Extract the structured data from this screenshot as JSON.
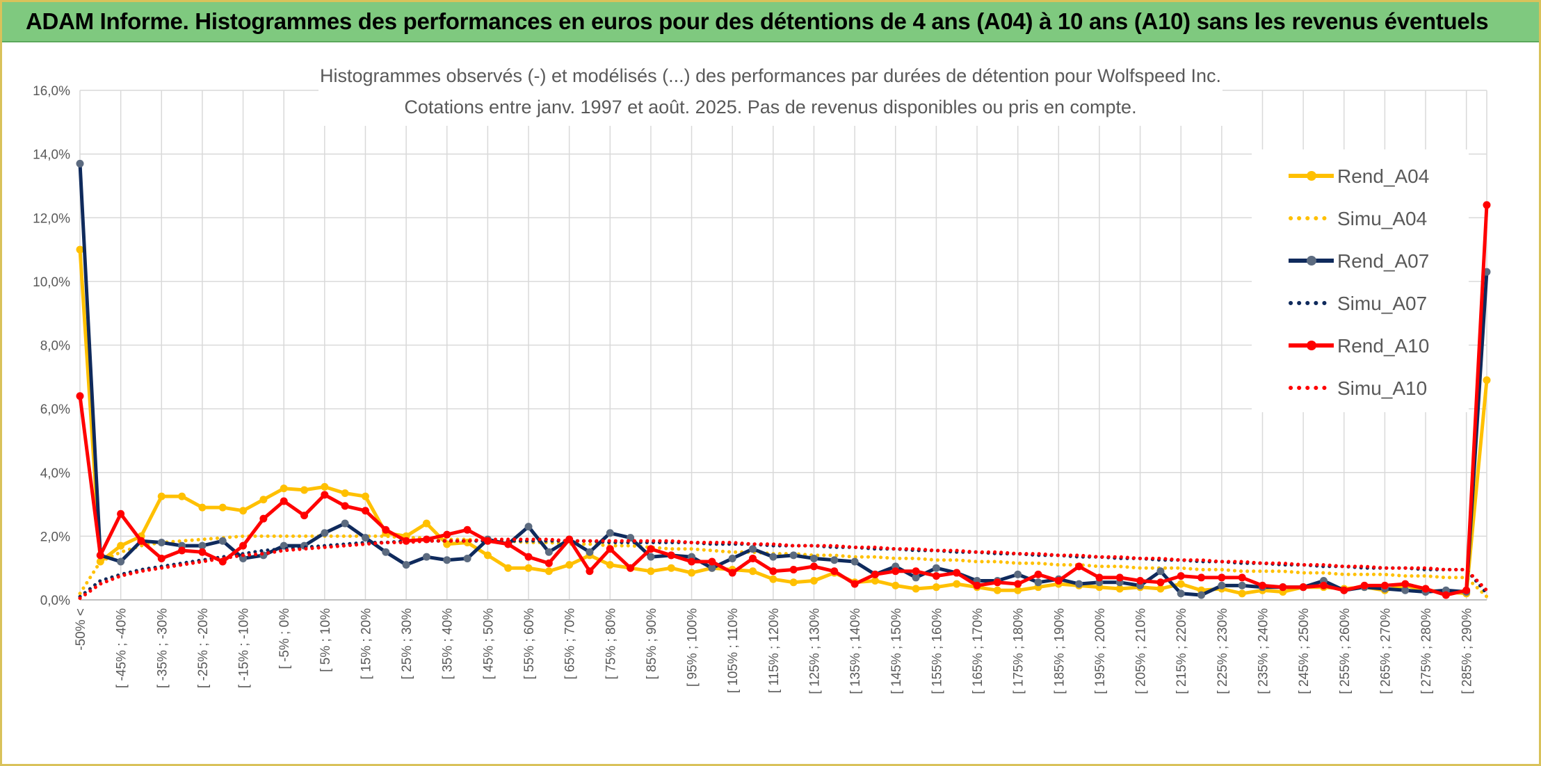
{
  "header": {
    "title": "ADAM Informe. Histogrammes des performances en euros pour des détentions de 4 ans (A04) à 10 ans (A10) sans les revenus éventuels"
  },
  "colors": {
    "banner": "#7fc97f",
    "A04": "#ffc000",
    "A07": "#0f2a5c",
    "A07_marker": "#5c6b80",
    "A10": "#ff0000",
    "grid": "#d9d9d9",
    "text": "#595959"
  },
  "chart_data": {
    "type": "line",
    "title": "Histogrammes observés (-) et modélisés (...) des performances par durées de détention pour Wolfspeed Inc.",
    "subtitle": "Cotations entre janv. 1997 et août. 2025. Pas de revenus disponibles ou pris en compte.",
    "ylim": [
      0,
      16
    ],
    "yticks": [
      "0,0%",
      "2,0%",
      "4,0%",
      "6,0%",
      "8,0%",
      "10,0%",
      "12,0%",
      "14,0%",
      "16,0%"
    ],
    "y_step": 2,
    "grid": true,
    "legend_position": "right",
    "categories": [
      "-50% <",
      "",
      "[ -45% ; -40%",
      "",
      "[ -35% ; -30%",
      "",
      "[ -25% ; -20%",
      "",
      "[ -15% ; -10%",
      "",
      "[ -5% ; 0%",
      "",
      "[ 5% ; 10%",
      "",
      "[ 15% ; 20%",
      "",
      "[ 25% ; 30%",
      "",
      "[ 35% ; 40%",
      "",
      "[ 45% ; 50%",
      "",
      "[ 55% ; 60%",
      "",
      "[ 65% ; 70%",
      "",
      "[ 75% ; 80%",
      "",
      "[ 85% ; 90%",
      "",
      "[ 95% ; 100%",
      "",
      "[ 105% ; 110%",
      "",
      "[ 115% ; 120%",
      "",
      "[ 125% ; 130%",
      "",
      "[ 135% ; 140%",
      "",
      "[ 145% ; 150%",
      "",
      "[ 155% ; 160%",
      "",
      "[ 165% ; 170%",
      "",
      "[ 175% ; 180%",
      "",
      "[ 185% ; 190%",
      "",
      "[ 195% ; 200%",
      "",
      "[ 205% ; 210%",
      "",
      "[ 215% ; 220%",
      "",
      "[ 225% ; 230%",
      "",
      "[ 235% ; 240%",
      "",
      "[ 245% ; 250%",
      "",
      "[ 255% ; 260%",
      "",
      "[ 265% ; 270%",
      "",
      "[ 275% ; 280%",
      "",
      "[ 285% ; 290%",
      ""
    ],
    "series": [
      {
        "name": "Rend_A04",
        "style": "solid",
        "color": "#ffc000",
        "values": [
          11.0,
          1.2,
          1.7,
          2.0,
          3.25,
          3.25,
          2.9,
          2.9,
          2.8,
          3.15,
          3.5,
          3.45,
          3.55,
          3.35,
          3.25,
          2.1,
          2.0,
          2.4,
          1.75,
          1.8,
          1.4,
          1.0,
          1.0,
          0.9,
          1.1,
          1.4,
          1.1,
          1.0,
          0.9,
          1.0,
          0.85,
          1.0,
          0.95,
          0.9,
          0.65,
          0.55,
          0.6,
          0.85,
          0.55,
          0.6,
          0.45,
          0.35,
          0.4,
          0.5,
          0.4,
          0.3,
          0.3,
          0.4,
          0.5,
          0.45,
          0.4,
          0.35,
          0.4,
          0.35,
          0.5,
          0.3,
          0.35,
          0.2,
          0.3,
          0.25,
          0.4,
          0.4,
          0.35,
          0.4,
          0.3,
          0.45,
          0.3,
          0.25,
          0.2,
          6.9
        ]
      },
      {
        "name": "Simu_A04",
        "style": "dotted",
        "color": "#ffc000",
        "values": [
          0.2,
          1.2,
          1.5,
          1.7,
          1.8,
          1.85,
          1.9,
          1.95,
          2.0,
          2.0,
          2.0,
          2.0,
          2.0,
          2.0,
          2.0,
          2.0,
          1.95,
          1.95,
          1.9,
          1.9,
          1.85,
          1.85,
          1.8,
          1.8,
          1.75,
          1.75,
          1.7,
          1.7,
          1.65,
          1.6,
          1.6,
          1.55,
          1.5,
          1.5,
          1.45,
          1.45,
          1.4,
          1.4,
          1.35,
          1.35,
          1.3,
          1.3,
          1.25,
          1.25,
          1.2,
          1.2,
          1.15,
          1.15,
          1.1,
          1.1,
          1.05,
          1.05,
          1.0,
          1.0,
          1.0,
          0.95,
          0.95,
          0.9,
          0.9,
          0.9,
          0.85,
          0.85,
          0.8,
          0.8,
          0.8,
          0.75,
          0.75,
          0.7,
          0.7,
          0.1
        ]
      },
      {
        "name": "Rend_A07",
        "style": "solid",
        "color": "#0f2a5c",
        "values": [
          13.7,
          1.4,
          1.2,
          1.85,
          1.8,
          1.7,
          1.7,
          1.85,
          1.3,
          1.4,
          1.7,
          1.7,
          2.1,
          2.4,
          1.95,
          1.5,
          1.1,
          1.35,
          1.25,
          1.3,
          1.9,
          1.75,
          2.3,
          1.5,
          1.9,
          1.5,
          2.1,
          1.95,
          1.35,
          1.4,
          1.35,
          1.0,
          1.3,
          1.6,
          1.35,
          1.4,
          1.3,
          1.25,
          1.2,
          0.8,
          1.05,
          0.7,
          1.0,
          0.85,
          0.6,
          0.6,
          0.8,
          0.55,
          0.65,
          0.5,
          0.55,
          0.55,
          0.45,
          0.9,
          0.2,
          0.15,
          0.45,
          0.45,
          0.4,
          0.4,
          0.4,
          0.6,
          0.3,
          0.4,
          0.35,
          0.3,
          0.25,
          0.3,
          0.25,
          10.3
        ]
      },
      {
        "name": "Simu_A07",
        "style": "dotted",
        "color": "#0f2a5c",
        "values": [
          0.1,
          0.6,
          0.8,
          0.95,
          1.05,
          1.15,
          1.25,
          1.35,
          1.45,
          1.55,
          1.6,
          1.65,
          1.7,
          1.75,
          1.8,
          1.8,
          1.85,
          1.85,
          1.85,
          1.85,
          1.85,
          1.85,
          1.85,
          1.85,
          1.85,
          1.85,
          1.8,
          1.8,
          1.8,
          1.8,
          1.8,
          1.75,
          1.75,
          1.75,
          1.7,
          1.7,
          1.7,
          1.65,
          1.65,
          1.6,
          1.6,
          1.55,
          1.55,
          1.5,
          1.5,
          1.45,
          1.45,
          1.4,
          1.4,
          1.35,
          1.35,
          1.3,
          1.3,
          1.25,
          1.25,
          1.2,
          1.2,
          1.15,
          1.15,
          1.1,
          1.1,
          1.05,
          1.05,
          1.0,
          1.0,
          1.0,
          0.95,
          0.95,
          0.95,
          0.2
        ]
      },
      {
        "name": "Rend_A10",
        "style": "solid",
        "color": "#ff0000",
        "values": [
          6.4,
          1.4,
          2.7,
          1.85,
          1.3,
          1.55,
          1.5,
          1.2,
          1.7,
          2.55,
          3.1,
          2.65,
          3.3,
          2.95,
          2.8,
          2.2,
          1.85,
          1.9,
          2.05,
          2.2,
          1.85,
          1.75,
          1.35,
          1.15,
          1.9,
          0.9,
          1.6,
          1.0,
          1.6,
          1.4,
          1.2,
          1.2,
          0.85,
          1.3,
          0.9,
          0.95,
          1.05,
          0.9,
          0.5,
          0.8,
          0.9,
          0.9,
          0.75,
          0.85,
          0.45,
          0.55,
          0.5,
          0.8,
          0.6,
          1.05,
          0.7,
          0.7,
          0.6,
          0.55,
          0.75,
          0.7,
          0.7,
          0.7,
          0.45,
          0.4,
          0.4,
          0.45,
          0.3,
          0.45,
          0.45,
          0.5,
          0.35,
          0.15,
          0.3,
          12.4
        ]
      },
      {
        "name": "Simu_A10",
        "style": "dotted",
        "color": "#ff0000",
        "values": [
          0.05,
          0.5,
          0.75,
          0.9,
          1.0,
          1.1,
          1.2,
          1.3,
          1.4,
          1.45,
          1.55,
          1.6,
          1.65,
          1.7,
          1.75,
          1.8,
          1.8,
          1.85,
          1.85,
          1.85,
          1.9,
          1.9,
          1.9,
          1.9,
          1.85,
          1.85,
          1.85,
          1.85,
          1.85,
          1.85,
          1.8,
          1.8,
          1.8,
          1.75,
          1.75,
          1.7,
          1.7,
          1.7,
          1.65,
          1.65,
          1.6,
          1.6,
          1.55,
          1.55,
          1.5,
          1.5,
          1.45,
          1.45,
          1.4,
          1.4,
          1.35,
          1.35,
          1.3,
          1.3,
          1.25,
          1.25,
          1.2,
          1.2,
          1.15,
          1.15,
          1.1,
          1.1,
          1.05,
          1.05,
          1.0,
          1.0,
          1.0,
          0.95,
          0.95,
          0.3
        ]
      }
    ]
  }
}
